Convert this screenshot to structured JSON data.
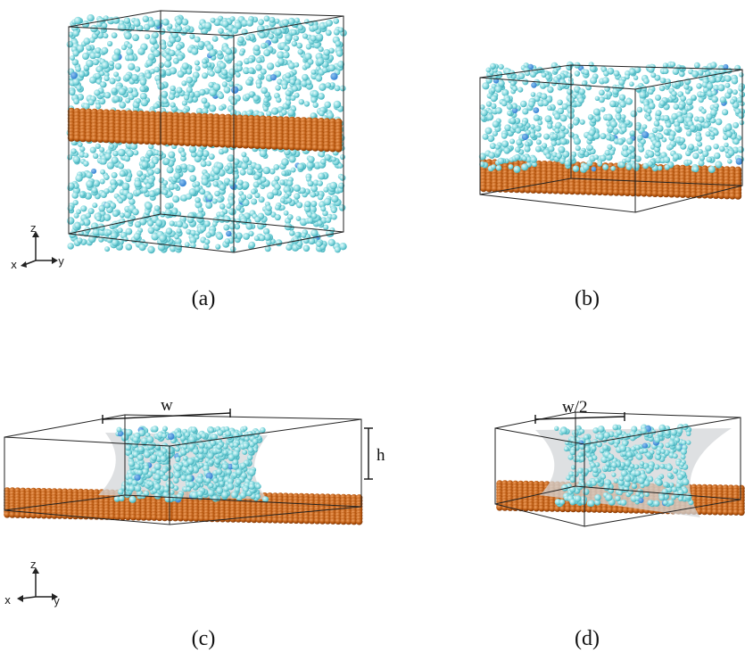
{
  "panels": {
    "a": {
      "caption": "(a)"
    },
    "b": {
      "caption": "(b)"
    },
    "c": {
      "caption": "(c)",
      "width_label": "w",
      "height_label": "h"
    },
    "d": {
      "caption": "(d)",
      "width_label": "w/2"
    }
  },
  "axes_triad": {
    "x": "x",
    "y": "y",
    "z": "z"
  },
  "colors": {
    "water": "#7fd6dc",
    "water_dark": "#3aa8b5",
    "ion_blue": "#2b7bd0",
    "ion_purple": "#8a4fd0",
    "graphene": "#b8570e",
    "graphene_dark": "#7a3305",
    "box_edge": "#222222",
    "meniscus": "#d3d6d8"
  }
}
